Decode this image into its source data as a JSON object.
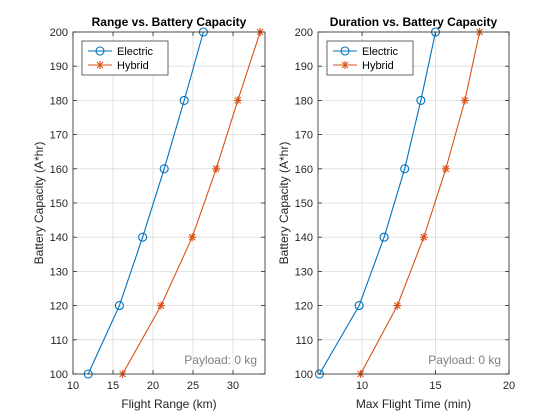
{
  "chart_data": [
    {
      "type": "line",
      "title": "Range vs. Battery Capacity",
      "xlabel": "Flight Range (km)",
      "ylabel": "Battery Capacity (A*hr)",
      "xlim": [
        10,
        34
      ],
      "ylim": [
        100,
        200
      ],
      "xticks": [
        10,
        15,
        20,
        25,
        30
      ],
      "yticks": [
        100,
        110,
        120,
        130,
        140,
        150,
        160,
        170,
        180,
        190,
        200
      ],
      "grid": true,
      "legend": "top-left",
      "annotation": "Payload: 0 kg",
      "series": [
        {
          "name": "Electric",
          "color": "#0072BD",
          "marker": "circle",
          "x": [
            11.9,
            15.8,
            18.7,
            21.4,
            23.9,
            26.3
          ],
          "y": [
            100,
            120,
            140,
            160,
            180,
            200
          ]
        },
        {
          "name": "Hybrid",
          "color": "#D95319",
          "marker": "asterisk",
          "x": [
            16.2,
            21.0,
            24.9,
            27.9,
            30.6,
            33.4
          ],
          "y": [
            100,
            120,
            140,
            160,
            180,
            200
          ]
        }
      ]
    },
    {
      "type": "line",
      "title": "Duration vs. Battery Capacity",
      "xlabel": "Max Flight Time (min)",
      "ylabel": "Battery Capacity (A*hr)",
      "xlim": [
        7,
        20
      ],
      "ylim": [
        100,
        200
      ],
      "xticks": [
        10,
        15,
        20
      ],
      "yticks": [
        100,
        110,
        120,
        130,
        140,
        150,
        160,
        170,
        180,
        190,
        200
      ],
      "grid": true,
      "legend": "top-left",
      "annotation": "Payload: 0 kg",
      "series": [
        {
          "name": "Electric",
          "color": "#0072BD",
          "marker": "circle",
          "x": [
            7.1,
            9.8,
            11.5,
            12.9,
            14.0,
            15.0
          ],
          "y": [
            100,
            120,
            140,
            160,
            180,
            200
          ]
        },
        {
          "name": "Hybrid",
          "color": "#D95319",
          "marker": "asterisk",
          "x": [
            9.9,
            12.4,
            14.2,
            15.7,
            17.0,
            18.0
          ],
          "y": [
            100,
            120,
            140,
            160,
            180,
            200
          ]
        }
      ]
    }
  ]
}
